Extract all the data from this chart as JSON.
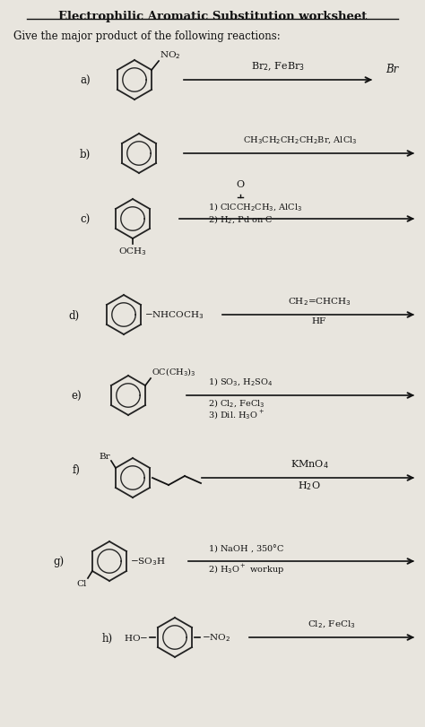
{
  "title": "Electrophilic Aromatic Substitution worksheet",
  "subtitle": "Give the major product of the following reactions:",
  "bg_color": "#e8e5de",
  "text_color": "#111111",
  "reactions": [
    {
      "label": "a)",
      "reagent1": "Br₂, FeBr₃",
      "note": "Br"
    },
    {
      "label": "b)",
      "reagent1": "CH₃CH₂CH₂CH₂Br, AlCl₃"
    },
    {
      "label": "c)",
      "reagent0": "O",
      "reagent1": "1) ClCCH₂CH₃, AlCl₃",
      "reagent2": "2) H₂, Pd on C"
    },
    {
      "label": "d)",
      "reagent1": "CH₂=CHCH₃",
      "reagent2": "HF"
    },
    {
      "label": "e)",
      "reagent1": "1) SO₃, H₂SO₄",
      "reagent2": "2) Cl₂, FeCl₃",
      "reagent3": "3) Dil. H₃O⁺"
    },
    {
      "label": "f)",
      "reagent1": "KMnO₄",
      "reagent2": "H₂O"
    },
    {
      "label": "g)",
      "reagent1": "1) NaOH , 350°C",
      "reagent2": "2) H₃O⁺ workup"
    },
    {
      "label": "h)",
      "reagent1": "Cl₂, FeCl₃"
    }
  ]
}
